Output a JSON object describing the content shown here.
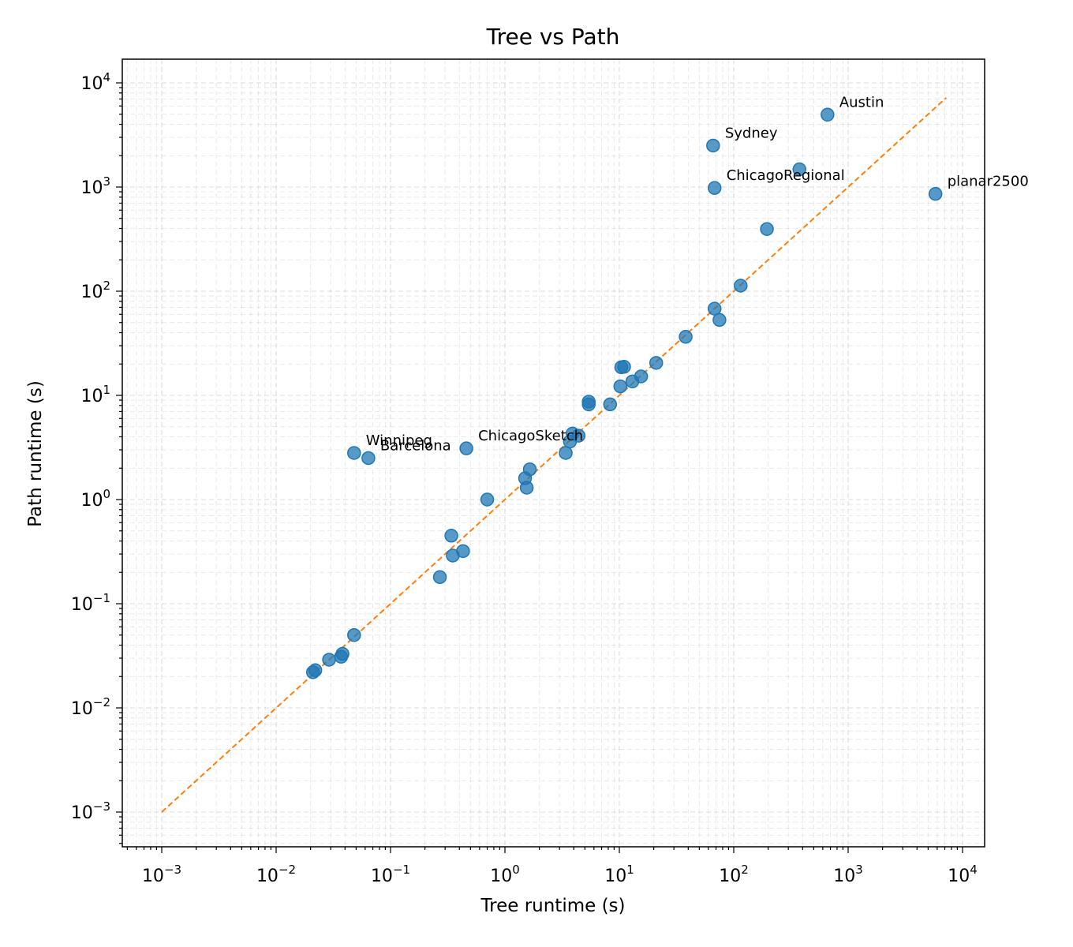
{
  "chart_data": {
    "type": "scatter",
    "title": "Tree vs Path",
    "xlabel": "Tree runtime (s)",
    "ylabel": "Path runtime (s)",
    "xscale": "log",
    "yscale": "log",
    "xlim": [
      0.00048,
      16000
    ],
    "ylim": [
      0.00048,
      16000
    ],
    "grid": "both (major and minor), dashed, light gray",
    "x_ticks": [
      {
        "value": 0.001,
        "base": "10",
        "exp": "−3"
      },
      {
        "value": 0.01,
        "base": "10",
        "exp": "−2"
      },
      {
        "value": 0.1,
        "base": "10",
        "exp": "−1"
      },
      {
        "value": 1,
        "base": "10",
        "exp": "0"
      },
      {
        "value": 10,
        "base": "10",
        "exp": "1"
      },
      {
        "value": 100,
        "base": "10",
        "exp": "2"
      },
      {
        "value": 1000,
        "base": "10",
        "exp": "3"
      },
      {
        "value": 10000,
        "base": "10",
        "exp": "4"
      }
    ],
    "y_ticks": [
      {
        "value": 0.001,
        "base": "10",
        "exp": "−3"
      },
      {
        "value": 0.01,
        "base": "10",
        "exp": "−2"
      },
      {
        "value": 0.1,
        "base": "10",
        "exp": "−1"
      },
      {
        "value": 1,
        "base": "10",
        "exp": "0"
      },
      {
        "value": 10,
        "base": "10",
        "exp": "1"
      },
      {
        "value": 100,
        "base": "10",
        "exp": "2"
      },
      {
        "value": 1000,
        "base": "10",
        "exp": "3"
      },
      {
        "value": 10000,
        "base": "10",
        "exp": "4"
      }
    ],
    "reference_line": {
      "style": "dashed",
      "color": "#ff7f0e",
      "from": [
        0.001,
        0.001
      ],
      "to": [
        7200,
        7200
      ]
    },
    "point_color": "#1f77b4",
    "points": [
      {
        "x": 0.021,
        "y": 0.022
      },
      {
        "x": 0.022,
        "y": 0.023
      },
      {
        "x": 0.029,
        "y": 0.029
      },
      {
        "x": 0.037,
        "y": 0.031
      },
      {
        "x": 0.038,
        "y": 0.033
      },
      {
        "x": 0.048,
        "y": 0.05
      },
      {
        "x": 0.048,
        "y": 2.8,
        "label": "Winnipeg"
      },
      {
        "x": 0.064,
        "y": 2.5,
        "label": "Barcelona"
      },
      {
        "x": 0.27,
        "y": 0.18
      },
      {
        "x": 0.34,
        "y": 0.45
      },
      {
        "x": 0.35,
        "y": 0.29
      },
      {
        "x": 0.43,
        "y": 0.32
      },
      {
        "x": 0.46,
        "y": 3.1,
        "label": "ChicagoSketch"
      },
      {
        "x": 0.7,
        "y": 1.0
      },
      {
        "x": 1.5,
        "y": 1.6
      },
      {
        "x": 1.55,
        "y": 1.3
      },
      {
        "x": 1.65,
        "y": 1.95
      },
      {
        "x": 3.4,
        "y": 2.8
      },
      {
        "x": 3.7,
        "y": 3.6
      },
      {
        "x": 3.9,
        "y": 4.3
      },
      {
        "x": 4.4,
        "y": 4.1
      },
      {
        "x": 5.4,
        "y": 8.2
      },
      {
        "x": 5.4,
        "y": 8.7
      },
      {
        "x": 8.3,
        "y": 8.2
      },
      {
        "x": 10.2,
        "y": 12.2
      },
      {
        "x": 10.4,
        "y": 18.6
      },
      {
        "x": 11.0,
        "y": 18.8
      },
      {
        "x": 13.0,
        "y": 13.6
      },
      {
        "x": 15.5,
        "y": 15.2
      },
      {
        "x": 21.0,
        "y": 20.5
      },
      {
        "x": 38.0,
        "y": 36.5
      },
      {
        "x": 66.0,
        "y": 2500,
        "label": "Sydney"
      },
      {
        "x": 68.0,
        "y": 68.0
      },
      {
        "x": 68.0,
        "y": 980,
        "label": "ChicagoRegional"
      },
      {
        "x": 75.0,
        "y": 53.0
      },
      {
        "x": 115.0,
        "y": 113.0
      },
      {
        "x": 195.0,
        "y": 395.0
      },
      {
        "x": 375.0,
        "y": 1480.0
      },
      {
        "x": 660.0,
        "y": 4950.0,
        "label": "Austin"
      },
      {
        "x": 5800.0,
        "y": 860.0,
        "label": "planar2500"
      }
    ]
  }
}
